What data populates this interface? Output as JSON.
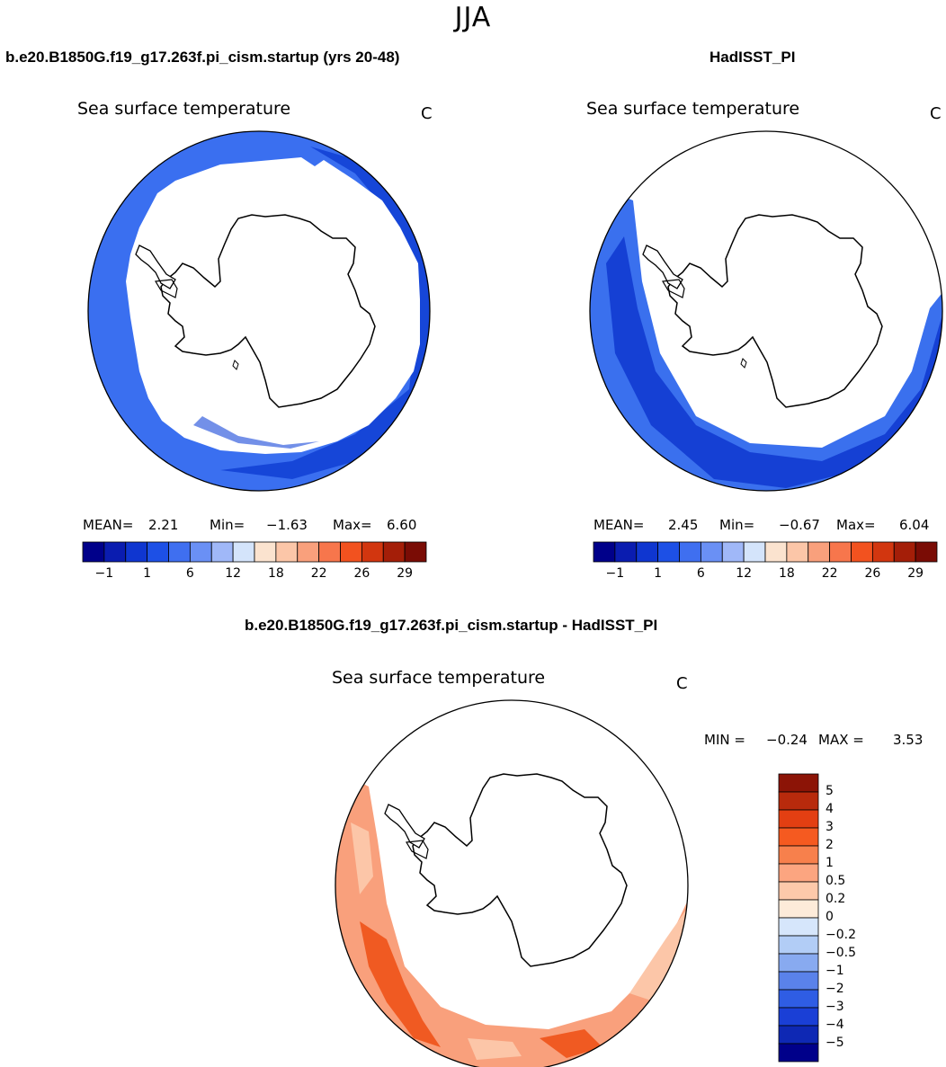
{
  "figure": {
    "season": "JJA"
  },
  "panels": [
    {
      "id": "model",
      "title": "b.e20.B1850G.f19_g17.263f.pi_cism.startup (yrs 20-48)",
      "variable": "Sea surface temperature",
      "units": "C",
      "stats": {
        "mean_label": "MEAN=",
        "mean": "2.21",
        "min_label": "Min=",
        "min": "−1.63",
        "max_label": "Max=",
        "max": "6.60"
      }
    },
    {
      "id": "obs",
      "title": "HadISST_PI",
      "variable": "Sea surface temperature",
      "units": "C",
      "stats": {
        "mean_label": "MEAN=",
        "mean": "2.45",
        "min_label": "Min=",
        "min": "−0.67",
        "max_label": "Max=",
        "max": "6.04"
      }
    },
    {
      "id": "diff",
      "title": "b.e20.B1850G.f19_g17.263f.pi_cism.startup - HadISST_PI",
      "variable": "Sea surface temperature",
      "units": "C",
      "stats": {
        "min_label": "MIN =",
        "min": "−0.24",
        "max_label": "MAX =",
        "max": "3.53"
      }
    }
  ],
  "colorbar_sst": {
    "colors": [
      "#00008a",
      "#0a1cb0",
      "#0f36d0",
      "#1d50e6",
      "#3f6ff0",
      "#6a90f5",
      "#a0b8f8",
      "#d4e4fb",
      "#fbe3cf",
      "#fcc6a8",
      "#f9a07c",
      "#f7764c",
      "#f2521f",
      "#d2360f",
      "#a41e08",
      "#7a0c05"
    ],
    "tick_labels": [
      "−1",
      "1",
      "6",
      "12",
      "18",
      "22",
      "26",
      "29"
    ]
  },
  "colorbar_diff": {
    "colors_top_to_bottom": [
      "#8c1406",
      "#b82a0c",
      "#e33f12",
      "#f55a20",
      "#f7804c",
      "#fca580",
      "#fdc9aa",
      "#fdebd9",
      "#d6e6fb",
      "#b2cdf6",
      "#88aaf0",
      "#5a82ea",
      "#2f5de4",
      "#1a3fd6",
      "#0e28b4",
      "#00008a"
    ],
    "labels": [
      "5",
      "4",
      "3",
      "2",
      "1",
      "0.5",
      "0.2",
      "0",
      "−0.2",
      "−0.5",
      "−1",
      "−2",
      "−3",
      "−4",
      "−5"
    ]
  },
  "map_colors": {
    "ocean_model": "#3a6ff0",
    "ocean_model_dark": "#1646d8",
    "ocean_model_deep": "#0a2aa8",
    "ocean_obs": "#3a70ee",
    "ocean_obs_dark": "#1540d4",
    "diff_main": "#f9a07c",
    "diff_strong": "#f05a22",
    "diff_light": "#fcc6a8"
  }
}
